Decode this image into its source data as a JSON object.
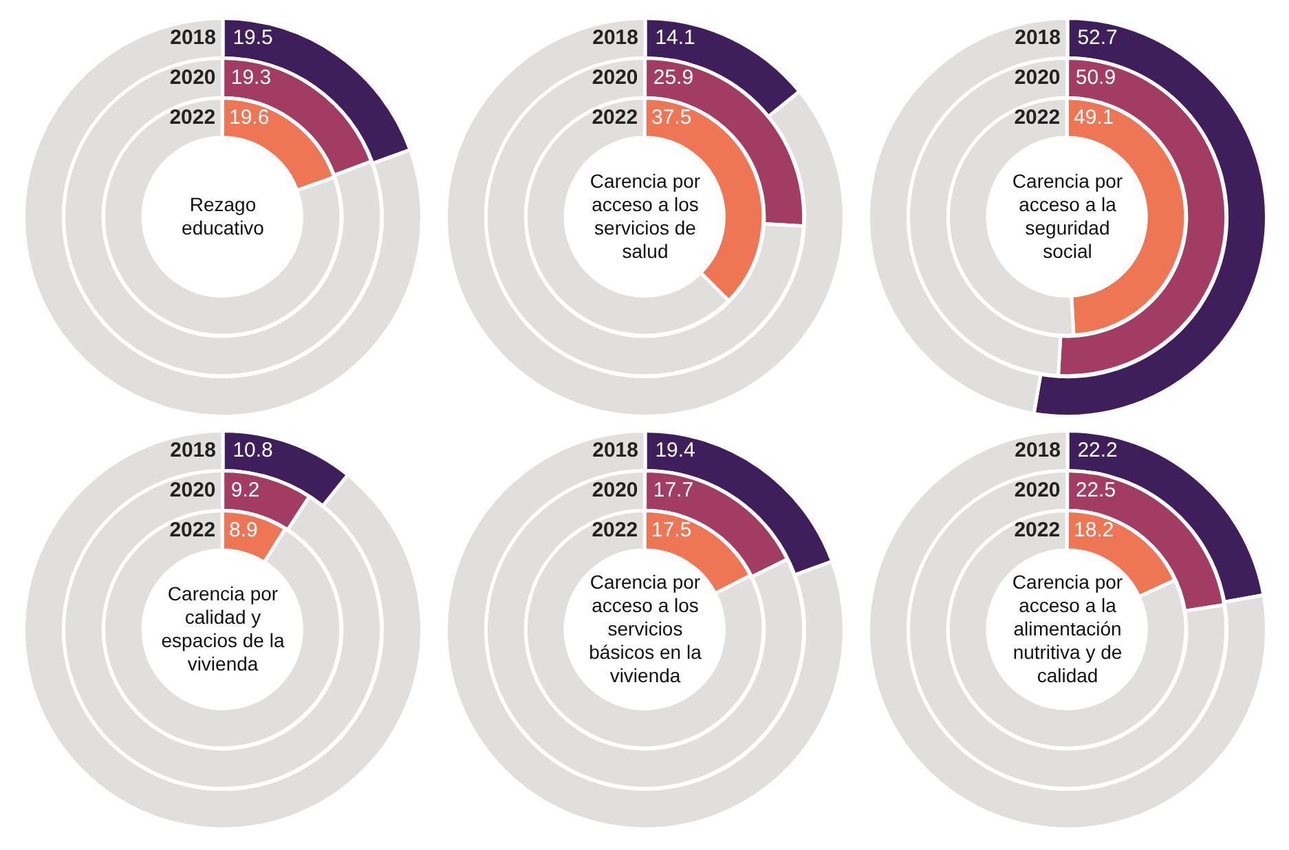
{
  "chart_data": [
    {
      "type": "donut",
      "title": "Rezago educativo",
      "categories": [
        null,
        null
      ],
      "series": [
        {
          "name": "2018",
          "colors": [
            "#3e1f5b",
            "#e0dfde"
          ],
          "values": [
            19.5,
            80.5
          ],
          "value_labels": [
            "19.5",
            null
          ]
        }
      ]
    },
    {
      "type": "donut",
      "categories": [
        null,
        null
      ],
      "series": [
        {
          "name": "2020",
          "colors": [
            "#a33c63",
            "#e0dfde"
          ],
          "values": [
            19.3,
            80.7
          ],
          "value_labels": [
            "19.3",
            null
          ]
        }
      ]
    },
    {
      "type": "donut",
      "categories": [
        null,
        null
      ],
      "series": [
        {
          "name": "2022",
          "colors": [
            "#ee7655",
            "#e0dfde"
          ],
          "values": [
            19.6,
            80.4
          ],
          "value_labels": [
            "19.6",
            null
          ]
        }
      ]
    },
    {
      "type": "donut",
      "title": "Carencia por acceso a los servicios de salud",
      "categories": [
        null,
        null
      ],
      "series": [
        {
          "name": "2018",
          "colors": [
            "#3e1f5b",
            "#e0dfde"
          ],
          "values": [
            14.1,
            85.9
          ],
          "value_labels": [
            "14.1",
            null
          ]
        }
      ]
    },
    {
      "type": "donut",
      "categories": [
        null,
        null
      ],
      "series": [
        {
          "name": "2020",
          "colors": [
            "#a33c63",
            "#e0dfde"
          ],
          "values": [
            25.9,
            74.1
          ],
          "value_labels": [
            "25.9",
            null
          ]
        }
      ]
    },
    {
      "type": "donut",
      "categories": [
        null,
        null
      ],
      "series": [
        {
          "name": "2022",
          "colors": [
            "#ee7655",
            "#e0dfde"
          ],
          "values": [
            37.5,
            62.5
          ],
          "value_labels": [
            "37.5",
            null
          ]
        }
      ]
    },
    {
      "type": "donut",
      "title": "Carencia por acceso a la seguridad social",
      "categories": [
        null,
        null
      ],
      "series": [
        {
          "name": "2018",
          "colors": [
            "#3e1f5b",
            "#e0dfde"
          ],
          "values": [
            52.7,
            47.3
          ],
          "value_labels": [
            "52.7",
            null
          ]
        }
      ]
    },
    {
      "type": "donut",
      "categories": [
        null,
        null
      ],
      "series": [
        {
          "name": "2020",
          "colors": [
            "#a33c63",
            "#e0dfde"
          ],
          "values": [
            50.9,
            49.1
          ],
          "value_labels": [
            "50.9",
            null
          ]
        }
      ]
    },
    {
      "type": "donut",
      "categories": [
        null,
        null
      ],
      "series": [
        {
          "name": "2022",
          "colors": [
            "#ee7655",
            "#e0dfde"
          ],
          "values": [
            49.1,
            50.9
          ],
          "value_labels": [
            "49.1",
            null
          ]
        }
      ]
    },
    {
      "type": "donut",
      "title": "Carencia por calidad y espacios de la vivienda",
      "categories": [
        null,
        null
      ],
      "series": [
        {
          "name": "2018",
          "colors": [
            "#3e1f5b",
            "#e0dfde"
          ],
          "values": [
            10.8,
            89.2
          ],
          "value_labels": [
            "10.8",
            null
          ]
        }
      ]
    },
    {
      "type": "donut",
      "categories": [
        null,
        null
      ],
      "series": [
        {
          "name": "2020",
          "colors": [
            "#a33c63",
            "#e0dfde"
          ],
          "values": [
            9.2,
            90.8
          ],
          "value_labels": [
            "9.2",
            null
          ]
        }
      ]
    },
    {
      "type": "donut",
      "categories": [
        null,
        null
      ],
      "series": [
        {
          "name": "2022",
          "colors": [
            "#ee7655",
            "#e0dfde"
          ],
          "values": [
            8.9,
            91.1
          ],
          "value_labels": [
            "8.9",
            null
          ]
        }
      ]
    },
    {
      "type": "donut",
      "title": "Carencia por acceso a los servicios básicos en la vivienda",
      "categories": [
        null,
        null
      ],
      "series": [
        {
          "name": "2018",
          "colors": [
            "#3e1f5b",
            "#e0dfde"
          ],
          "values": [
            19.4,
            80.6
          ],
          "value_labels": [
            "19.4",
            null
          ]
        }
      ]
    },
    {
      "type": "donut",
      "categories": [
        null,
        null
      ],
      "series": [
        {
          "name": "2020",
          "colors": [
            "#a33c63",
            "#e0dfde"
          ],
          "values": [
            17.7,
            82.3
          ],
          "value_labels": [
            "17.7",
            null
          ]
        }
      ]
    },
    {
      "type": "donut",
      "categories": [
        null,
        null
      ],
      "series": [
        {
          "name": "2022",
          "colors": [
            "#ee7655",
            "#e0dfde"
          ],
          "values": [
            17.5,
            82.5
          ],
          "value_labels": [
            "17.5",
            null
          ]
        }
      ]
    },
    {
      "type": "donut",
      "title": "Carencia por acceso a la alimentación nutritiva y de calidad",
      "categories": [
        null,
        null
      ],
      "series": [
        {
          "name": "2018",
          "colors": [
            "#3e1f5b",
            "#e0dfde"
          ],
          "values": [
            22.2,
            77.8
          ],
          "value_labels": [
            "22.2",
            null
          ]
        }
      ]
    },
    {
      "type": "donut",
      "categories": [
        null,
        null
      ],
      "series": [
        {
          "name": "2020",
          "colors": [
            "#a33c63",
            "#e0dfde"
          ],
          "values": [
            22.5,
            77.5
          ],
          "value_labels": [
            "22.5",
            null
          ]
        }
      ]
    },
    {
      "type": "donut",
      "categories": [
        null,
        null
      ],
      "series": [
        {
          "name": "2022",
          "colors": [
            "#ee7655",
            "#e0dfde"
          ],
          "values": [
            18.2,
            81.8
          ],
          "value_labels": [
            "18.2",
            null
          ]
        }
      ]
    }
  ]
}
